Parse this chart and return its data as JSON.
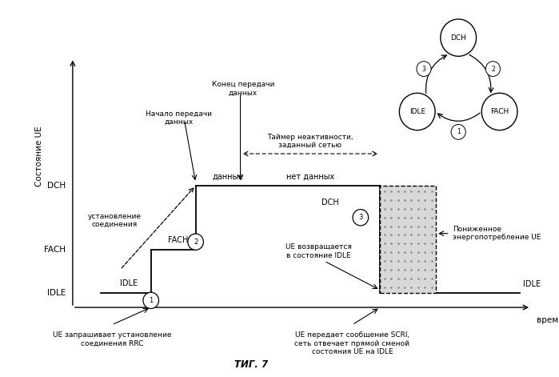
{
  "title": "ΤИГ. 7",
  "state_label": "Состояние UE",
  "time_label": "время",
  "y_labels": [
    "IDLE",
    "FACH",
    "DCH"
  ],
  "bg_color": "#ffffff"
}
